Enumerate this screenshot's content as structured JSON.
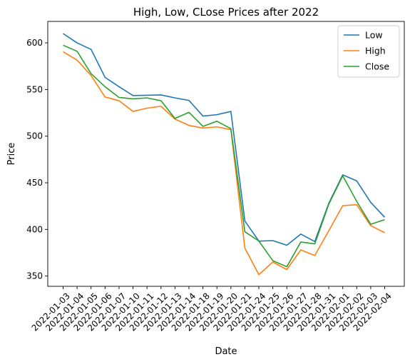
{
  "chart_data": {
    "type": "line",
    "title": "High, Low, CLose Prices after 2022",
    "xlabel": "Date",
    "ylabel": "Price",
    "ylim": [
      339,
      623
    ],
    "yticks": [
      350,
      400,
      450,
      500,
      550,
      600
    ],
    "grid": false,
    "legend_position": "top-right",
    "categories": [
      "2022-01-03",
      "2022-01-04",
      "2022-01-05",
      "2022-01-06",
      "2022-01-07",
      "2022-01-10",
      "2022-01-11",
      "2022-01-12",
      "2022-01-13",
      "2022-01-14",
      "2022-01-18",
      "2022-01-19",
      "2022-01-20",
      "2022-01-21",
      "2022-01-24",
      "2022-01-25",
      "2022-01-26",
      "2022-01-27",
      "2022-01-28",
      "2022-01-31",
      "2022-02-01",
      "2022-02-02",
      "2022-02-03",
      "2022-02-04"
    ],
    "series": [
      {
        "name": "Low",
        "color": "#1f77b4",
        "values": [
          610,
          600,
          593,
          563,
          553,
          543.5,
          543.8,
          544.2,
          541,
          538.3,
          521.5,
          523,
          526.5,
          409,
          387.5,
          388,
          383,
          395,
          387,
          428,
          458.5,
          452,
          429,
          413
        ]
      },
      {
        "name": "High",
        "color": "#ff7f0e",
        "values": [
          590.5,
          581.5,
          565,
          542,
          538,
          526.5,
          530,
          532,
          518.3,
          511.5,
          508.7,
          510,
          507,
          380,
          351.5,
          365,
          357,
          378,
          372,
          398.5,
          425.5,
          426.5,
          404,
          396.5
        ]
      },
      {
        "name": "Close",
        "color": "#2ca02c",
        "values": [
          597.5,
          591,
          567,
          553,
          541.5,
          540,
          541,
          538,
          519,
          525.5,
          510.5,
          516,
          508,
          397.5,
          387.5,
          366.5,
          360,
          386.5,
          384.5,
          427,
          457.5,
          430,
          405.5,
          410.5
        ]
      }
    ]
  }
}
